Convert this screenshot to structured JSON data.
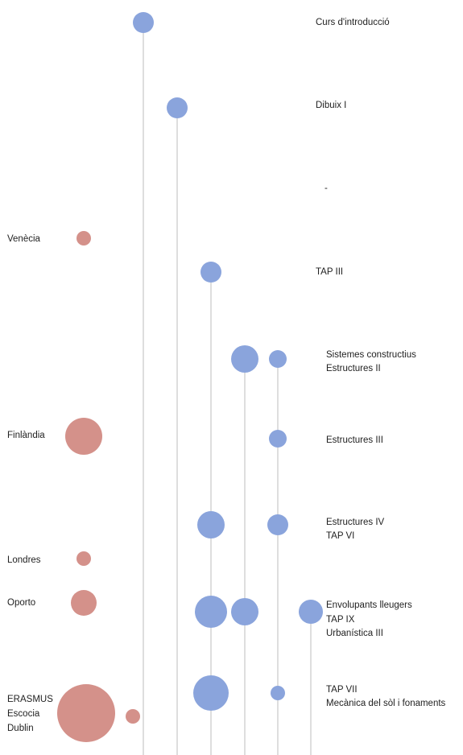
{
  "colors": {
    "blue_bubble": "#8AA4DC",
    "red_bubble": "#D4918A",
    "line": "#C9C9C9"
  },
  "rows": [
    {
      "id": "r1",
      "subjects": [
        "Curs d'introducció"
      ],
      "cities": []
    },
    {
      "id": "r2",
      "subjects": [
        "Dibuix I"
      ],
      "cities": []
    },
    {
      "id": "r3",
      "subjects": [
        "-"
      ],
      "cities": []
    },
    {
      "id": "r4",
      "subjects": [],
      "cities": [
        "Venècia"
      ]
    },
    {
      "id": "r5",
      "subjects": [
        "TAP III"
      ],
      "cities": []
    },
    {
      "id": "r6",
      "subjects": [
        "Sistemes constructius",
        "Estructures II"
      ],
      "cities": []
    },
    {
      "id": "r7",
      "subjects": [
        "Estructures III"
      ],
      "cities": [
        "Finlàndia"
      ]
    },
    {
      "id": "r8",
      "subjects": [
        "Estructures IV",
        "TAP VI"
      ],
      "cities": []
    },
    {
      "id": "r9",
      "subjects": [],
      "cities": [
        "Londres"
      ]
    },
    {
      "id": "r10",
      "subjects": [
        "Envolupants lleugers",
        "TAP IX",
        "Urbanística III"
      ],
      "cities": [
        "Oporto"
      ]
    },
    {
      "id": "r11",
      "subjects": [
        "TAP VII",
        "Mecànica del sòl i fonaments"
      ],
      "cities": [
        "ERASMUS",
        "Escocia",
        "Dublin"
      ]
    }
  ]
}
